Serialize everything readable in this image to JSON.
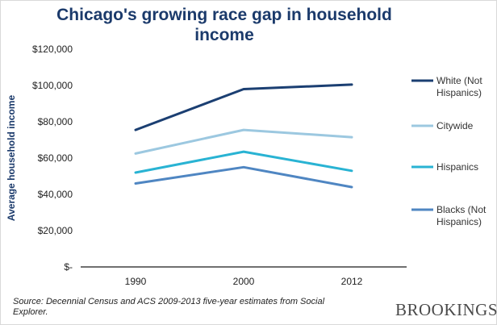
{
  "chart_data": {
    "type": "line",
    "title": "Chicago's growing race gap in household income",
    "xlabel": "",
    "ylabel": "Average household income",
    "categories": [
      "1990",
      "2000",
      "2012"
    ],
    "ylim": [
      0,
      120000
    ],
    "y_ticks": [
      "$-",
      "$20,000",
      "$40,000",
      "$60,000",
      "$80,000",
      "$100,000",
      "$120,000"
    ],
    "grid": false,
    "legend_position": "right",
    "series": [
      {
        "name": "White (Not Hispanics)",
        "color": "#1b3f72",
        "values": [
          75500,
          98000,
          100500
        ],
        "legend_lines": [
          "White (Not",
          "Hispanics)"
        ]
      },
      {
        "name": "Citywide",
        "color": "#9cc8e0",
        "values": [
          62500,
          75500,
          71500
        ],
        "legend_lines": [
          "Citywide"
        ]
      },
      {
        "name": "Hispanics",
        "color": "#29b3d3",
        "values": [
          52000,
          63500,
          53000
        ],
        "legend_lines": [
          "Hispanics"
        ]
      },
      {
        "name": "Blacks (Not Hispanics)",
        "color": "#4f86c2",
        "values": [
          46000,
          55000,
          44000
        ],
        "legend_lines": [
          "Blacks (Not",
          "Hispanics)"
        ]
      }
    ]
  },
  "source_text": "Source: Decennial Census and ACS 2009-2013 five-year estimates from Social Explorer.",
  "logo_text": "BROOKINGS"
}
